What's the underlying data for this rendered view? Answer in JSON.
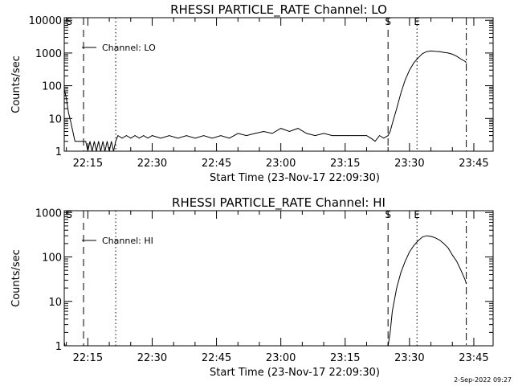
{
  "timestamp": "2-Sep-2022 09:27",
  "chart_data": [
    {
      "type": "line",
      "title": "RHESSI PARTICLE_RATE Channel: LO",
      "xlabel": "Start Time (23-Nov-17 22:09:30)",
      "ylabel": "Counts/sec",
      "yscale": "log",
      "xlim": [
        "22:09:30",
        "23:49:30"
      ],
      "ylim": [
        1,
        12000
      ],
      "x_ticks": [
        "22:15",
        "22:30",
        "22:45",
        "23:00",
        "23:15",
        "23:30",
        "23:45"
      ],
      "y_ticks": [
        "1",
        "10",
        "100",
        "1000",
        "10000"
      ],
      "legend": {
        "label": "Channel: LO",
        "position": "top-left"
      },
      "markers": [
        {
          "label": "S",
          "time": "22:09:45",
          "style": "none"
        },
        {
          "label": "",
          "time": "22:14:00",
          "style": "dashed"
        },
        {
          "label": "",
          "time": "22:21:30",
          "style": "dotted"
        },
        {
          "label": "S",
          "time": "23:25:00",
          "style": "dashed"
        },
        {
          "label": "E",
          "time": "23:31:45",
          "style": "dotted"
        },
        {
          "label": "",
          "time": "23:43:15",
          "style": "dashdot"
        }
      ],
      "series": [
        {
          "name": "Channel: LO",
          "points": [
            [
              "22:09:30",
              80
            ],
            [
              "22:10:00",
              40
            ],
            [
              "22:10:30",
              15
            ],
            [
              "22:11:00",
              8
            ],
            [
              "22:11:30",
              4
            ],
            [
              "22:12:00",
              2
            ],
            [
              "22:13:00",
              2
            ],
            [
              "22:14:00",
              2
            ],
            [
              "22:14:30",
              2
            ],
            [
              "22:15:00",
              1
            ],
            [
              "22:15:30",
              2
            ],
            [
              "22:16:00",
              1
            ],
            [
              "22:16:30",
              2
            ],
            [
              "22:17:00",
              1
            ],
            [
              "22:17:30",
              2
            ],
            [
              "22:18:00",
              1
            ],
            [
              "22:18:30",
              2
            ],
            [
              "22:19:00",
              1
            ],
            [
              "22:19:30",
              2
            ],
            [
              "22:20:00",
              1
            ],
            [
              "22:20:30",
              2
            ],
            [
              "22:21:00",
              1
            ],
            [
              "22:21:30",
              2
            ],
            [
              "22:22:00",
              3
            ],
            [
              "22:23:00",
              2.5
            ],
            [
              "22:24:00",
              3
            ],
            [
              "22:25:00",
              2.5
            ],
            [
              "22:26:00",
              3
            ],
            [
              "22:27:00",
              2.5
            ],
            [
              "22:28:00",
              3
            ],
            [
              "22:29:00",
              2.5
            ],
            [
              "22:30:00",
              3
            ],
            [
              "22:32:00",
              2.5
            ],
            [
              "22:34:00",
              3
            ],
            [
              "22:36:00",
              2.5
            ],
            [
              "22:38:00",
              3
            ],
            [
              "22:40:00",
              2.5
            ],
            [
              "22:42:00",
              3
            ],
            [
              "22:44:00",
              2.5
            ],
            [
              "22:46:00",
              3
            ],
            [
              "22:48:00",
              2.5
            ],
            [
              "22:50:00",
              3.5
            ],
            [
              "22:52:00",
              3
            ],
            [
              "22:54:00",
              3.5
            ],
            [
              "22:56:00",
              4
            ],
            [
              "22:58:00",
              3.5
            ],
            [
              "23:00:00",
              5
            ],
            [
              "23:02:00",
              4
            ],
            [
              "23:04:00",
              5
            ],
            [
              "23:06:00",
              3.5
            ],
            [
              "23:08:00",
              3
            ],
            [
              "23:10:00",
              3.5
            ],
            [
              "23:12:00",
              3
            ],
            [
              "23:14:00",
              3
            ],
            [
              "23:16:00",
              3
            ],
            [
              "23:18:00",
              3
            ],
            [
              "23:20:00",
              3
            ],
            [
              "23:21:00",
              2.5
            ],
            [
              "23:22:00",
              2
            ],
            [
              "23:23:00",
              3
            ],
            [
              "23:24:00",
              2.5
            ],
            [
              "23:25:00",
              3
            ],
            [
              "23:25:30",
              4
            ],
            [
              "23:26:00",
              7
            ],
            [
              "23:27:00",
              20
            ],
            [
              "23:28:00",
              60
            ],
            [
              "23:29:00",
              150
            ],
            [
              "23:30:00",
              300
            ],
            [
              "23:31:00",
              500
            ],
            [
              "23:32:00",
              700
            ],
            [
              "23:33:00",
              950
            ],
            [
              "23:34:00",
              1100
            ],
            [
              "23:35:00",
              1150
            ],
            [
              "23:36:00",
              1120
            ],
            [
              "23:37:00",
              1100
            ],
            [
              "23:38:00",
              1050
            ],
            [
              "23:39:00",
              1000
            ],
            [
              "23:40:00",
              920
            ],
            [
              "23:41:00",
              800
            ],
            [
              "23:42:00",
              650
            ],
            [
              "23:43:00",
              550
            ],
            [
              "23:43:15",
              500
            ]
          ]
        }
      ]
    },
    {
      "type": "line",
      "title": "RHESSI PARTICLE_RATE Channel: HI",
      "xlabel": "Start Time (23-Nov-17 22:09:30)",
      "ylabel": "Counts/sec",
      "yscale": "log",
      "xlim": [
        "22:09:30",
        "23:49:30"
      ],
      "ylim": [
        1,
        1100
      ],
      "x_ticks": [
        "22:15",
        "22:30",
        "22:45",
        "23:00",
        "23:15",
        "23:30",
        "23:45"
      ],
      "y_ticks": [
        "1",
        "10",
        "100",
        "1000"
      ],
      "legend": {
        "label": "Channel: HI",
        "position": "top-left"
      },
      "markers": [
        {
          "label": "S",
          "time": "22:09:45",
          "style": "none"
        },
        {
          "label": "",
          "time": "22:14:00",
          "style": "dashed"
        },
        {
          "label": "",
          "time": "22:21:30",
          "style": "dotted"
        },
        {
          "label": "S",
          "time": "23:25:00",
          "style": "dashed"
        },
        {
          "label": "E",
          "time": "23:31:45",
          "style": "dotted"
        },
        {
          "label": "",
          "time": "23:43:15",
          "style": "dashdot"
        }
      ],
      "series": [
        {
          "name": "Channel: HI",
          "points": [
            [
              "22:09:30",
              1.2
            ],
            [
              "22:09:45",
              1
            ],
            [
              "23:25:00",
              1
            ],
            [
              "23:25:30",
              2
            ],
            [
              "23:26:00",
              6
            ],
            [
              "23:27:00",
              20
            ],
            [
              "23:28:00",
              45
            ],
            [
              "23:29:00",
              80
            ],
            [
              "23:30:00",
              130
            ],
            [
              "23:31:00",
              180
            ],
            [
              "23:32:00",
              230
            ],
            [
              "23:33:00",
              280
            ],
            [
              "23:34:00",
              300
            ],
            [
              "23:35:00",
              290
            ],
            [
              "23:36:00",
              270
            ],
            [
              "23:37:00",
              240
            ],
            [
              "23:38:00",
              200
            ],
            [
              "23:39:00",
              160
            ],
            [
              "23:40:00",
              110
            ],
            [
              "23:41:00",
              80
            ],
            [
              "23:42:00",
              50
            ],
            [
              "23:43:00",
              30
            ],
            [
              "23:43:15",
              25
            ]
          ]
        }
      ]
    }
  ]
}
